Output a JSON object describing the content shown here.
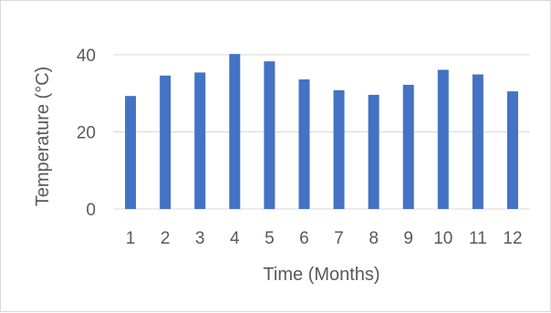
{
  "chart_data": {
    "type": "bar",
    "title": "",
    "xlabel": "Time (Months)",
    "ylabel": "Temperature (°C)",
    "categories": [
      "1",
      "2",
      "3",
      "4",
      "5",
      "6",
      "7",
      "8",
      "9",
      "10",
      "11",
      "12"
    ],
    "values": [
      29.3,
      34.6,
      35.4,
      40.2,
      38.3,
      33.6,
      30.8,
      29.6,
      32.2,
      36.1,
      34.9,
      30.5
    ],
    "ylim": [
      0,
      40
    ],
    "yticks": [
      "0",
      "20",
      "40"
    ],
    "grid": true,
    "legend": "none",
    "bar_color": "#4472c4",
    "grid_color": "#d9d9d9",
    "text_color": "#595959"
  }
}
